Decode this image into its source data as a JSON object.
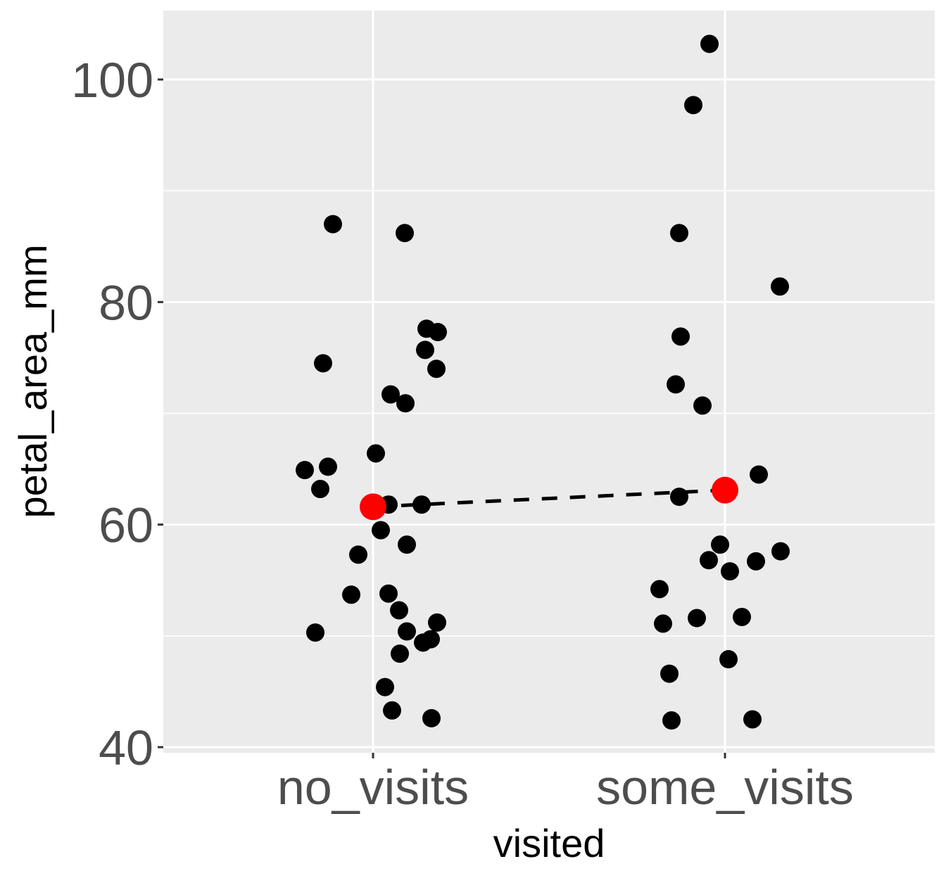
{
  "chart_data": {
    "type": "scatter",
    "title": "",
    "xlabel": "visited",
    "ylabel": "petal_area_mm",
    "categories": [
      "no_visits",
      "some_visits"
    ],
    "y_ticks": [
      40,
      60,
      80,
      100
    ],
    "ylim": [
      39.5,
      106.3
    ],
    "grid": true,
    "legend": null,
    "series": [
      {
        "name": "observations (jittered)",
        "color": "#000000",
        "points": [
          {
            "x": "no_visits",
            "jitter": -0.114,
            "y": 87.0
          },
          {
            "x": "no_visits",
            "jitter": 0.09,
            "y": 86.2
          },
          {
            "x": "no_visits",
            "jitter": -0.142,
            "y": 74.5
          },
          {
            "x": "no_visits",
            "jitter": 0.152,
            "y": 77.6
          },
          {
            "x": "no_visits",
            "jitter": 0.184,
            "y": 77.3
          },
          {
            "x": "no_visits",
            "jitter": 0.148,
            "y": 75.7
          },
          {
            "x": "no_visits",
            "jitter": 0.18,
            "y": 74.0
          },
          {
            "x": "no_visits",
            "jitter": 0.05,
            "y": 71.7
          },
          {
            "x": "no_visits",
            "jitter": 0.092,
            "y": 70.9
          },
          {
            "x": "no_visits",
            "jitter": 0.008,
            "y": 66.4
          },
          {
            "x": "no_visits",
            "jitter": -0.194,
            "y": 64.9
          },
          {
            "x": "no_visits",
            "jitter": -0.128,
            "y": 65.2
          },
          {
            "x": "no_visits",
            "jitter": -0.15,
            "y": 63.2
          },
          {
            "x": "no_visits",
            "jitter": 0.044,
            "y": 61.8
          },
          {
            "x": "no_visits",
            "jitter": 0.138,
            "y": 61.8
          },
          {
            "x": "no_visits",
            "jitter": 0.022,
            "y": 59.5
          },
          {
            "x": "no_visits",
            "jitter": 0.096,
            "y": 58.2
          },
          {
            "x": "no_visits",
            "jitter": -0.042,
            "y": 57.3
          },
          {
            "x": "no_visits",
            "jitter": -0.062,
            "y": 53.7
          },
          {
            "x": "no_visits",
            "jitter": 0.044,
            "y": 53.8
          },
          {
            "x": "no_visits",
            "jitter": 0.074,
            "y": 52.3
          },
          {
            "x": "no_visits",
            "jitter": 0.096,
            "y": 50.4
          },
          {
            "x": "no_visits",
            "jitter": 0.182,
            "y": 51.2
          },
          {
            "x": "no_visits",
            "jitter": 0.142,
            "y": 49.4
          },
          {
            "x": "no_visits",
            "jitter": 0.164,
            "y": 49.7
          },
          {
            "x": "no_visits",
            "jitter": -0.164,
            "y": 50.3
          },
          {
            "x": "no_visits",
            "jitter": 0.076,
            "y": 48.4
          },
          {
            "x": "no_visits",
            "jitter": 0.034,
            "y": 45.4
          },
          {
            "x": "no_visits",
            "jitter": 0.054,
            "y": 43.3
          },
          {
            "x": "no_visits",
            "jitter": 0.166,
            "y": 42.6
          },
          {
            "x": "some_visits",
            "jitter": -0.044,
            "y": 103.2
          },
          {
            "x": "some_visits",
            "jitter": -0.09,
            "y": 97.7
          },
          {
            "x": "some_visits",
            "jitter": -0.13,
            "y": 86.2
          },
          {
            "x": "some_visits",
            "jitter": 0.156,
            "y": 81.4
          },
          {
            "x": "some_visits",
            "jitter": -0.126,
            "y": 76.9
          },
          {
            "x": "some_visits",
            "jitter": -0.14,
            "y": 72.6
          },
          {
            "x": "some_visits",
            "jitter": -0.064,
            "y": 70.7
          },
          {
            "x": "some_visits",
            "jitter": 0.096,
            "y": 64.5
          },
          {
            "x": "some_visits",
            "jitter": -0.13,
            "y": 62.5
          },
          {
            "x": "some_visits",
            "jitter": -0.014,
            "y": 58.2
          },
          {
            "x": "some_visits",
            "jitter": -0.046,
            "y": 56.8
          },
          {
            "x": "some_visits",
            "jitter": 0.014,
            "y": 55.8
          },
          {
            "x": "some_visits",
            "jitter": 0.088,
            "y": 56.7
          },
          {
            "x": "some_visits",
            "jitter": 0.158,
            "y": 57.6
          },
          {
            "x": "some_visits",
            "jitter": -0.186,
            "y": 54.2
          },
          {
            "x": "some_visits",
            "jitter": -0.176,
            "y": 51.1
          },
          {
            "x": "some_visits",
            "jitter": -0.08,
            "y": 51.6
          },
          {
            "x": "some_visits",
            "jitter": 0.048,
            "y": 51.7
          },
          {
            "x": "some_visits",
            "jitter": 0.01,
            "y": 47.9
          },
          {
            "x": "some_visits",
            "jitter": -0.158,
            "y": 46.6
          },
          {
            "x": "some_visits",
            "jitter": -0.152,
            "y": 42.4
          },
          {
            "x": "some_visits",
            "jitter": 0.078,
            "y": 42.5
          }
        ]
      },
      {
        "name": "group mean",
        "color": "#ff0000",
        "points": [
          {
            "x": "no_visits",
            "jitter": 0,
            "y": 61.6
          },
          {
            "x": "some_visits",
            "jitter": 0,
            "y": 63.1
          }
        ],
        "connector": "dashed"
      }
    ]
  },
  "colors": {
    "panel_background": "#ebebeb",
    "grid": "#ffffff",
    "tick_label": "#4d4d4d",
    "point": "#000000",
    "mean_point": "#ff0000",
    "mean_line": "#000000"
  },
  "axes": {
    "x_title": "visited",
    "y_title": "petal_area_mm",
    "x_tick_labels": [
      "no_visits",
      "some_visits"
    ],
    "y_tick_labels": [
      "40",
      "60",
      "80",
      "100"
    ]
  }
}
